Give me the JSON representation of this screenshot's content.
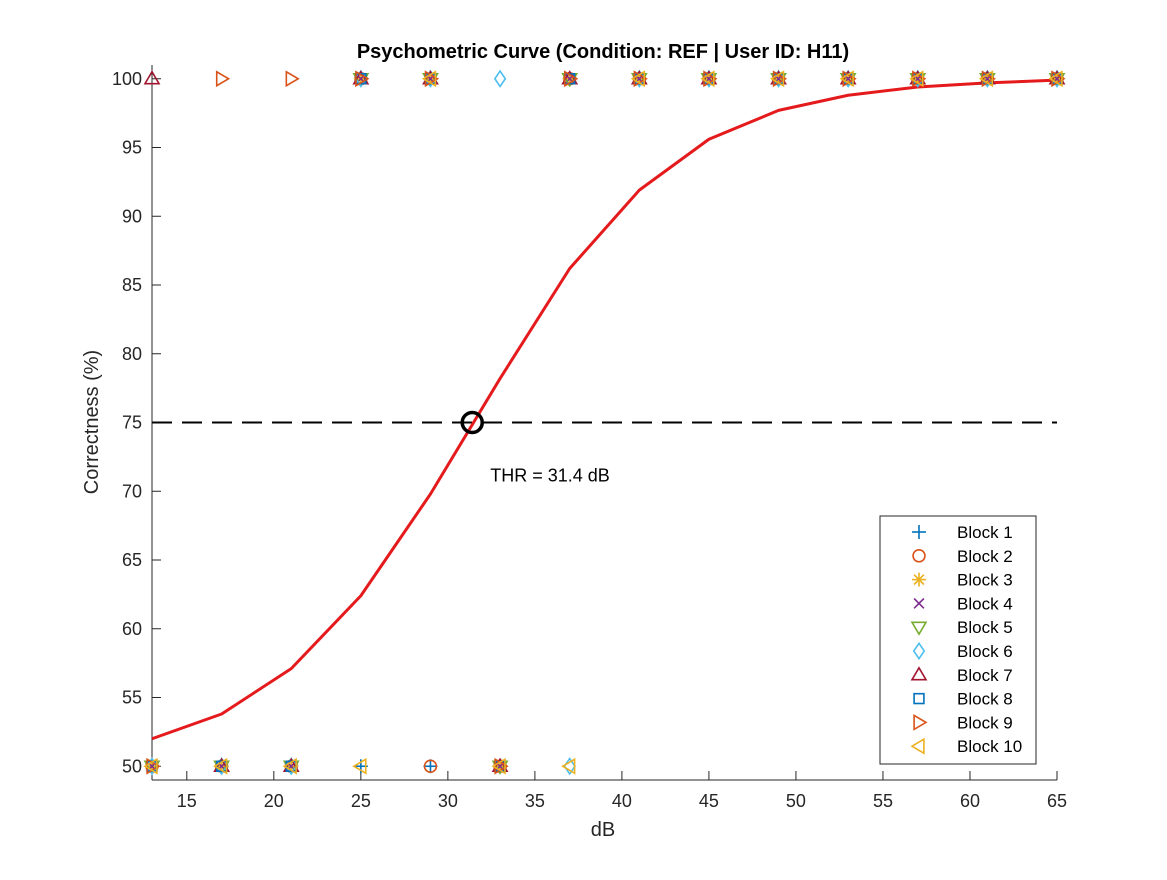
{
  "chart_data": {
    "type": "scatter",
    "title": "Psychometric Curve (Condition: REF | User ID: H11)",
    "xlabel": "dB",
    "ylabel": "Correctness (%)",
    "xlim": [
      13,
      65
    ],
    "ylim": [
      49,
      101
    ],
    "xticks": [
      15,
      20,
      25,
      30,
      35,
      40,
      45,
      50,
      55,
      60,
      65
    ],
    "yticks": [
      50,
      55,
      60,
      65,
      70,
      75,
      80,
      85,
      90,
      95,
      100
    ],
    "grid": false,
    "legend_position": "bottom-right",
    "series": [
      {
        "name": "Block 1",
        "marker": "plus",
        "color": "#0072BD",
        "points": [
          [
            13,
            50
          ],
          [
            17,
            50
          ],
          [
            21,
            50
          ],
          [
            25,
            50
          ],
          [
            29,
            50
          ],
          [
            33,
            50
          ],
          [
            37,
            100
          ],
          [
            41,
            100
          ],
          [
            45,
            100
          ],
          [
            49,
            100
          ],
          [
            53,
            100
          ],
          [
            57,
            100
          ],
          [
            61,
            100
          ],
          [
            65,
            100
          ]
        ]
      },
      {
        "name": "Block 2",
        "marker": "circle",
        "color": "#D95319",
        "points": [
          [
            13,
            50
          ],
          [
            17,
            50
          ],
          [
            21,
            50
          ],
          [
            25,
            100
          ],
          [
            29,
            50
          ],
          [
            33,
            50
          ],
          [
            37,
            100
          ],
          [
            41,
            100
          ],
          [
            45,
            100
          ],
          [
            49,
            100
          ],
          [
            53,
            100
          ],
          [
            57,
            100
          ],
          [
            61,
            100
          ],
          [
            65,
            100
          ]
        ]
      },
      {
        "name": "Block 3",
        "marker": "asterisk",
        "color": "#EDB120",
        "points": [
          [
            13,
            50
          ],
          [
            17,
            50
          ],
          [
            21,
            50
          ],
          [
            25,
            100
          ],
          [
            29,
            100
          ],
          [
            33,
            50
          ],
          [
            37,
            100
          ],
          [
            41,
            100
          ],
          [
            45,
            100
          ],
          [
            49,
            100
          ],
          [
            53,
            100
          ],
          [
            57,
            100
          ],
          [
            61,
            100
          ],
          [
            65,
            100
          ]
        ]
      },
      {
        "name": "Block 4",
        "marker": "x",
        "color": "#7E2F8E",
        "points": [
          [
            13,
            50
          ],
          [
            17,
            50
          ],
          [
            21,
            50
          ],
          [
            25,
            100
          ],
          [
            29,
            100
          ],
          [
            33,
            50
          ],
          [
            37,
            100
          ],
          [
            41,
            100
          ],
          [
            45,
            100
          ],
          [
            49,
            100
          ],
          [
            53,
            100
          ],
          [
            57,
            100
          ],
          [
            61,
            100
          ],
          [
            65,
            100
          ]
        ]
      },
      {
        "name": "Block 5",
        "marker": "triangle-down",
        "color": "#77AC30",
        "points": [
          [
            13,
            50
          ],
          [
            17,
            50
          ],
          [
            21,
            50
          ],
          [
            25,
            100
          ],
          [
            29,
            100
          ],
          [
            33,
            50
          ],
          [
            37,
            100
          ],
          [
            41,
            100
          ],
          [
            45,
            100
          ],
          [
            49,
            100
          ],
          [
            53,
            100
          ],
          [
            57,
            100
          ],
          [
            61,
            100
          ],
          [
            65,
            100
          ]
        ]
      },
      {
        "name": "Block 6",
        "marker": "diamond",
        "color": "#4DBEEE",
        "points": [
          [
            13,
            50
          ],
          [
            17,
            50
          ],
          [
            21,
            50
          ],
          [
            25,
            100
          ],
          [
            29,
            100
          ],
          [
            33,
            100
          ],
          [
            37,
            50
          ],
          [
            41,
            100
          ],
          [
            45,
            100
          ],
          [
            49,
            100
          ],
          [
            53,
            100
          ],
          [
            57,
            100
          ],
          [
            61,
            100
          ],
          [
            65,
            100
          ]
        ]
      },
      {
        "name": "Block 7",
        "marker": "triangle-up",
        "color": "#A2142F",
        "points": [
          [
            13,
            100
          ],
          [
            17,
            50
          ],
          [
            21,
            50
          ],
          [
            25,
            100
          ],
          [
            29,
            100
          ],
          [
            33,
            50
          ],
          [
            37,
            100
          ],
          [
            41,
            100
          ],
          [
            45,
            100
          ],
          [
            49,
            100
          ],
          [
            53,
            100
          ],
          [
            57,
            100
          ],
          [
            61,
            100
          ],
          [
            65,
            100
          ]
        ]
      },
      {
        "name": "Block 8",
        "marker": "square",
        "color": "#0072BD",
        "points": [
          [
            13,
            50
          ],
          [
            17,
            50
          ],
          [
            21,
            50
          ],
          [
            25,
            100
          ],
          [
            29,
            100
          ],
          [
            33,
            50
          ],
          [
            37,
            100
          ],
          [
            41,
            100
          ],
          [
            45,
            100
          ],
          [
            49,
            100
          ],
          [
            53,
            100
          ],
          [
            57,
            100
          ],
          [
            61,
            100
          ],
          [
            65,
            100
          ]
        ]
      },
      {
        "name": "Block 9",
        "marker": "triangle-right",
        "color": "#D95319",
        "points": [
          [
            13,
            50
          ],
          [
            17,
            100
          ],
          [
            21,
            100
          ],
          [
            25,
            100
          ],
          [
            29,
            100
          ],
          [
            33,
            50
          ],
          [
            37,
            100
          ],
          [
            41,
            100
          ],
          [
            45,
            100
          ],
          [
            49,
            100
          ],
          [
            53,
            100
          ],
          [
            57,
            100
          ],
          [
            61,
            100
          ],
          [
            65,
            100
          ]
        ]
      },
      {
        "name": "Block 10",
        "marker": "triangle-left",
        "color": "#EDB120",
        "points": [
          [
            13,
            50
          ],
          [
            17,
            50
          ],
          [
            21,
            50
          ],
          [
            25,
            50
          ],
          [
            29,
            100
          ],
          [
            33,
            50
          ],
          [
            37,
            50
          ],
          [
            41,
            100
          ],
          [
            45,
            100
          ],
          [
            49,
            100
          ],
          [
            53,
            100
          ],
          [
            57,
            100
          ],
          [
            61,
            100
          ],
          [
            65,
            100
          ]
        ]
      }
    ],
    "fit_curve": {
      "color": "#E41A1C",
      "x": [
        13,
        17,
        21,
        25,
        29,
        33,
        37,
        41,
        45,
        49,
        53,
        57,
        61,
        65
      ],
      "y": [
        52.0,
        53.8,
        57.1,
        62.4,
        69.8,
        78.2,
        86.2,
        91.9,
        95.6,
        97.7,
        98.8,
        99.4,
        99.7,
        99.9
      ]
    },
    "threshold_line": {
      "y": 75,
      "style": "dashed",
      "color": "#000000"
    },
    "threshold_point": {
      "x": 31.4,
      "y": 75,
      "label": "THR = 31.4 dB"
    }
  }
}
